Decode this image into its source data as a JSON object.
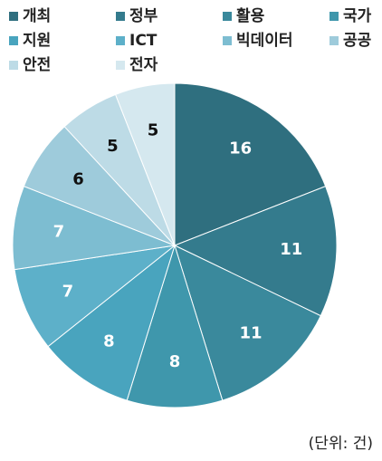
{
  "chart_data": {
    "type": "pie",
    "categories": [
      "개최",
      "정부",
      "활용",
      "국가",
      "지원",
      "ICT",
      "빅데이터",
      "공공",
      "안전",
      "전자"
    ],
    "values": [
      16,
      11,
      11,
      8,
      8,
      7,
      7,
      6,
      5,
      5
    ],
    "colors": [
      "#2f6f7f",
      "#347b8d",
      "#3a899c",
      "#3f97ac",
      "#49a4be",
      "#5db0c9",
      "#7dbdd1",
      "#9ecbdb",
      "#bddbe6",
      "#d5e8ef"
    ],
    "unit_label": "(단위: 건)"
  }
}
